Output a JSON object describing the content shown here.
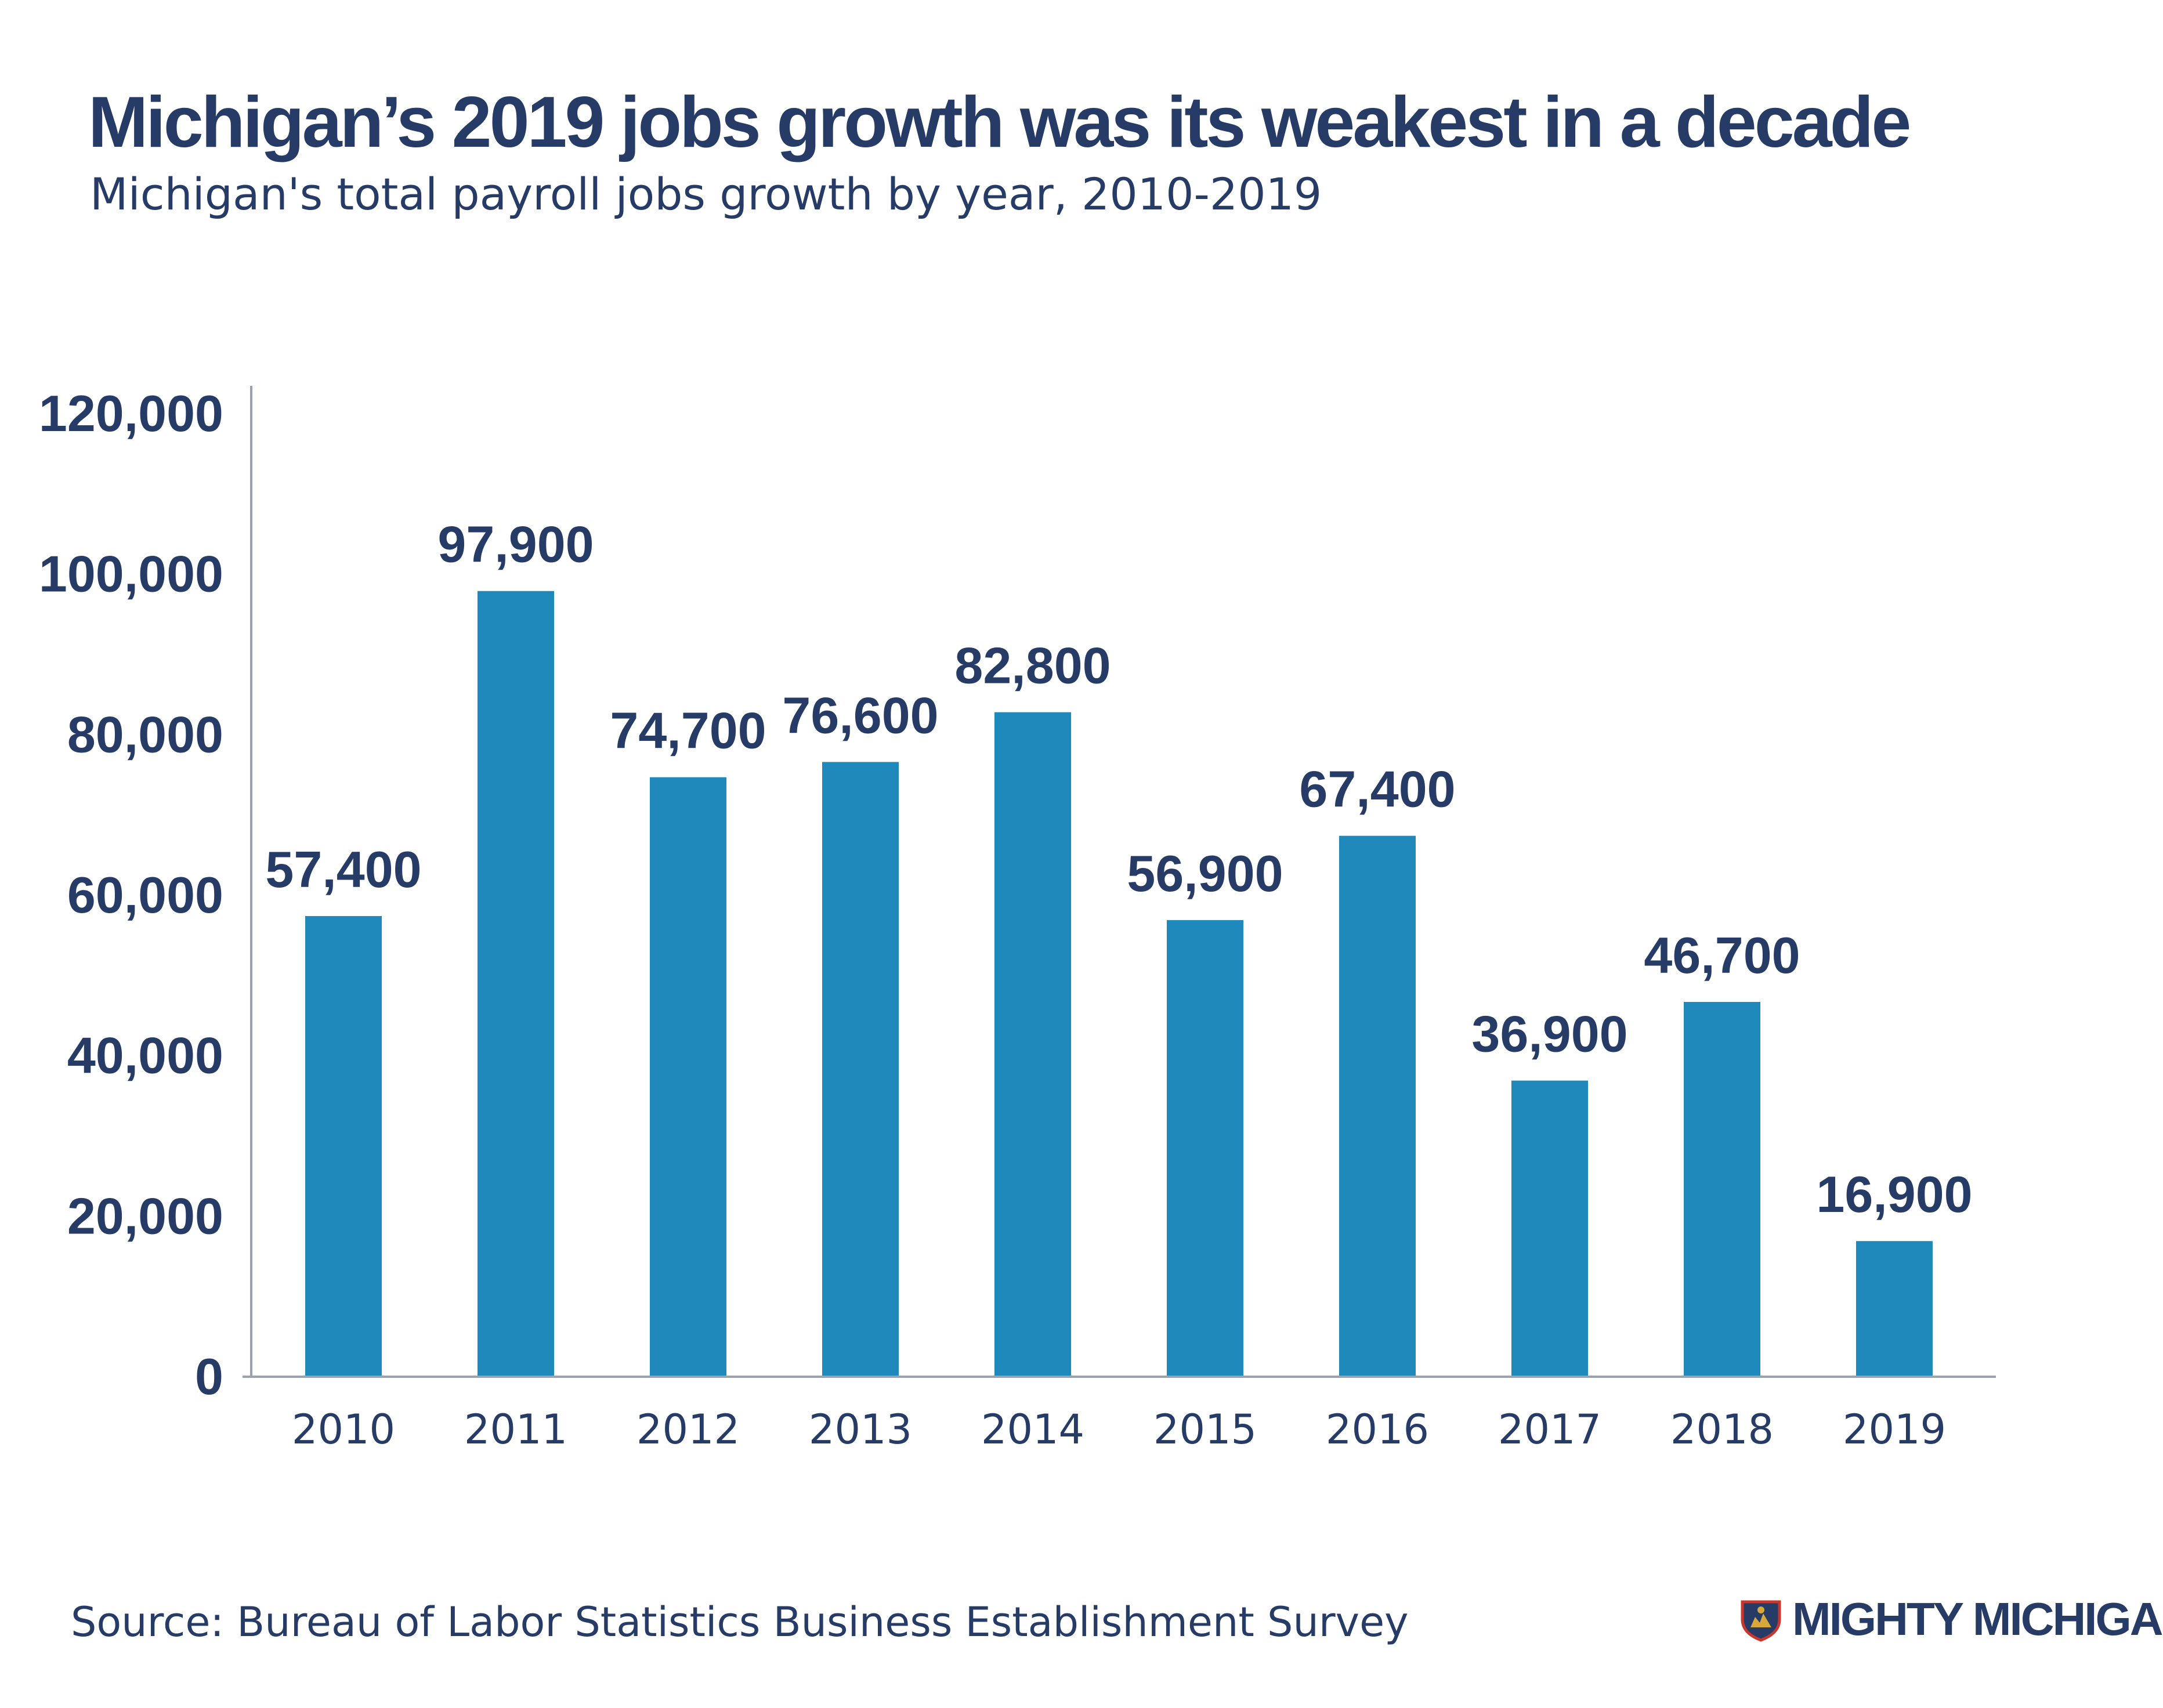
{
  "title": "Michigan’s 2019 jobs growth was its weakest in a decade",
  "subtitle": "Michigan's total payroll jobs growth by year, 2010-2019",
  "source": "Source: Bureau of Labor Statistics Business Establishment Survey",
  "brand": {
    "name": "MIGHTY MICHIGAN",
    "logo_icon": "michigan-shield-logo"
  },
  "colors": {
    "bar": "#1f89bb",
    "text": "#263b66",
    "axis": "#9aa3ad"
  },
  "chart_data": {
    "type": "bar",
    "categories": [
      "2010",
      "2011",
      "2012",
      "2013",
      "2014",
      "2015",
      "2016",
      "2017",
      "2018",
      "2019"
    ],
    "values": [
      57400,
      97900,
      74700,
      76600,
      82800,
      56900,
      67400,
      36900,
      46700,
      16900
    ],
    "data_labels": [
      "57,400",
      "97,900",
      "74,700",
      "76,600",
      "82,800",
      "56,900",
      "67,400",
      "36,900",
      "46,700",
      "16,900"
    ],
    "y_ticks": [
      0,
      20000,
      40000,
      60000,
      80000,
      100000,
      120000
    ],
    "y_tick_labels": [
      "0",
      "20,000",
      "40,000",
      "60,000",
      "80,000",
      "100,000",
      "120,000"
    ],
    "ylim": [
      0,
      120000
    ],
    "xlabel": "",
    "ylabel": "",
    "grid": false,
    "legend": "none"
  }
}
